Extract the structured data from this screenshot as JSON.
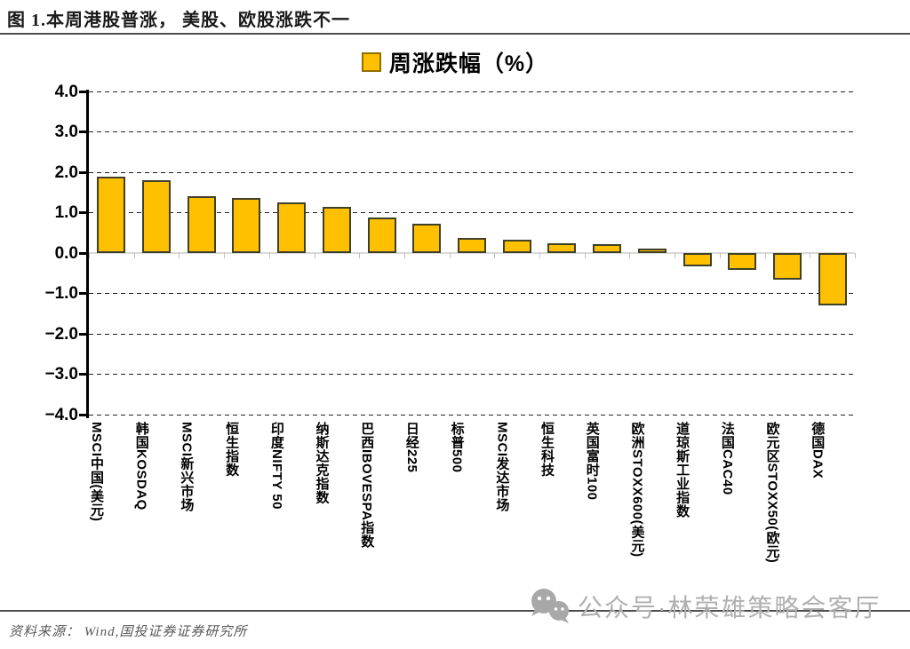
{
  "header": {
    "title": "图 1.本周港股普涨， 美股、欧股涨跌不一"
  },
  "footer": {
    "source": "资料来源： Wind,国投证券证券研究所"
  },
  "watermark": {
    "icon": "wechat-icon",
    "text": "公众号·林荣雄策略会客厅",
    "color": "#b0b0b0"
  },
  "chart_data": {
    "type": "bar",
    "title": "周涨跌幅（%）",
    "legend_position": "top",
    "grid": true,
    "gridline_style": "dashed",
    "bar_color": "#FFC000",
    "bar_border_color": "#404027",
    "ylim": [
      -4.0,
      4.0
    ],
    "ytick_labels": [
      "4.0",
      "3.0",
      "2.0",
      "1.0",
      "0.0",
      "−1.0",
      "−2.0",
      "−3.0",
      "−4.0"
    ],
    "ytick_values": [
      4.0,
      3.0,
      2.0,
      1.0,
      0.0,
      -1.0,
      -2.0,
      -3.0,
      -4.0
    ],
    "xlabel": "",
    "ylabel": "",
    "categories": [
      "MSCI中国(美元)",
      "韩国KOSDAQ",
      "MSCI新兴市场",
      "恒生指数",
      "印度NIFTY 50",
      "纳斯达克指数",
      "巴西IBOVESPA指数",
      "日经225",
      "标普500",
      "MSCI发达市场",
      "恒生科技",
      "英国富时100",
      "欧洲STOXX600(美元)",
      "道琼斯工业指数",
      "法国CAC40",
      "欧元区STOXX50(欧元)",
      "德国DAX"
    ],
    "values": [
      1.88,
      1.8,
      1.41,
      1.36,
      1.26,
      1.15,
      0.87,
      0.72,
      0.37,
      0.34,
      0.25,
      0.22,
      0.12,
      -0.33,
      -0.41,
      -0.66,
      -1.3
    ]
  }
}
